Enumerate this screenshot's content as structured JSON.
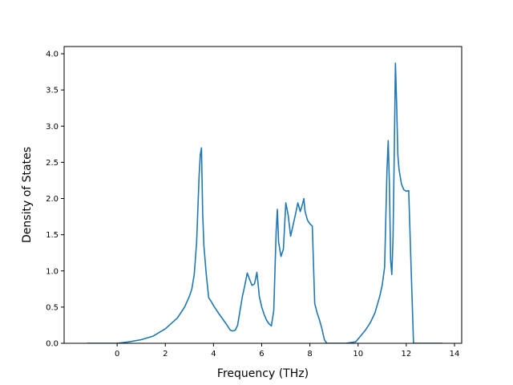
{
  "chart_data": {
    "type": "line",
    "title": "",
    "xlabel": "Frequency (THz)",
    "ylabel": "Density of States",
    "xlim": [
      -2.2,
      14.3
    ],
    "ylim": [
      0,
      4.1
    ],
    "xticks": [
      0,
      2,
      4,
      6,
      8,
      10,
      12,
      14
    ],
    "xtick_labels": [
      "0",
      "2",
      "4",
      "6",
      "8",
      "10",
      "12",
      "14"
    ],
    "yticks": [
      0,
      0.5,
      1.0,
      1.5,
      2.0,
      2.5,
      3.0,
      3.5,
      4.0
    ],
    "ytick_labels": [
      "0.0",
      "0.5",
      "1.0",
      "1.5",
      "2.0",
      "2.5",
      "3.0",
      "3.5",
      "4.0"
    ],
    "grid": false,
    "legend": "none",
    "series": [
      {
        "color": "#1f77b4",
        "x": [
          -1.25,
          -0.5,
          0,
          0.5,
          1.0,
          1.5,
          2.0,
          2.5,
          2.8,
          3.0,
          3.1,
          3.2,
          3.3,
          3.4,
          3.45,
          3.5,
          3.55,
          3.6,
          3.7,
          3.8,
          3.9,
          4.0,
          4.2,
          4.5,
          4.7,
          4.8,
          4.9,
          5.0,
          5.1,
          5.2,
          5.3,
          5.4,
          5.5,
          5.6,
          5.7,
          5.8,
          5.85,
          5.9,
          6.0,
          6.1,
          6.2,
          6.3,
          6.4,
          6.5,
          6.6,
          6.65,
          6.7,
          6.8,
          6.9,
          7.0,
          7.1,
          7.2,
          7.3,
          7.4,
          7.5,
          7.6,
          7.7,
          7.75,
          7.8,
          7.9,
          8.0,
          8.1,
          8.2,
          8.3,
          8.4,
          8.5,
          8.6,
          8.7,
          8.8,
          9.0,
          9.5,
          9.9,
          10.1,
          10.3,
          10.5,
          10.7,
          10.9,
          11.0,
          11.1,
          11.2,
          11.25,
          11.3,
          11.35,
          11.4,
          11.45,
          11.5,
          11.55,
          11.6,
          11.65,
          11.7,
          11.8,
          11.9,
          12.0,
          12.1,
          12.2,
          12.3,
          12.5,
          13.0,
          13.5
        ],
        "y": [
          0,
          0,
          0,
          0.02,
          0.05,
          0.1,
          0.2,
          0.35,
          0.5,
          0.65,
          0.75,
          0.95,
          1.4,
          2.3,
          2.6,
          2.7,
          1.8,
          1.35,
          0.95,
          0.63,
          0.58,
          0.52,
          0.42,
          0.28,
          0.18,
          0.17,
          0.18,
          0.25,
          0.45,
          0.65,
          0.8,
          0.97,
          0.88,
          0.8,
          0.82,
          0.98,
          0.82,
          0.65,
          0.5,
          0.4,
          0.32,
          0.27,
          0.24,
          0.45,
          1.55,
          1.85,
          1.4,
          1.2,
          1.3,
          1.94,
          1.77,
          1.48,
          1.63,
          1.78,
          1.94,
          1.82,
          1.93,
          2.0,
          1.82,
          1.7,
          1.65,
          1.62,
          0.55,
          0.42,
          0.32,
          0.2,
          0.05,
          0,
          0,
          0,
          0,
          0.02,
          0.1,
          0.18,
          0.28,
          0.42,
          0.65,
          0.8,
          1.05,
          2.4,
          2.8,
          2.2,
          1.15,
          0.95,
          1.45,
          2.6,
          3.87,
          3.3,
          2.6,
          2.4,
          2.2,
          2.12,
          2.1,
          2.11,
          1.05,
          0,
          0,
          0,
          0
        ]
      }
    ]
  }
}
